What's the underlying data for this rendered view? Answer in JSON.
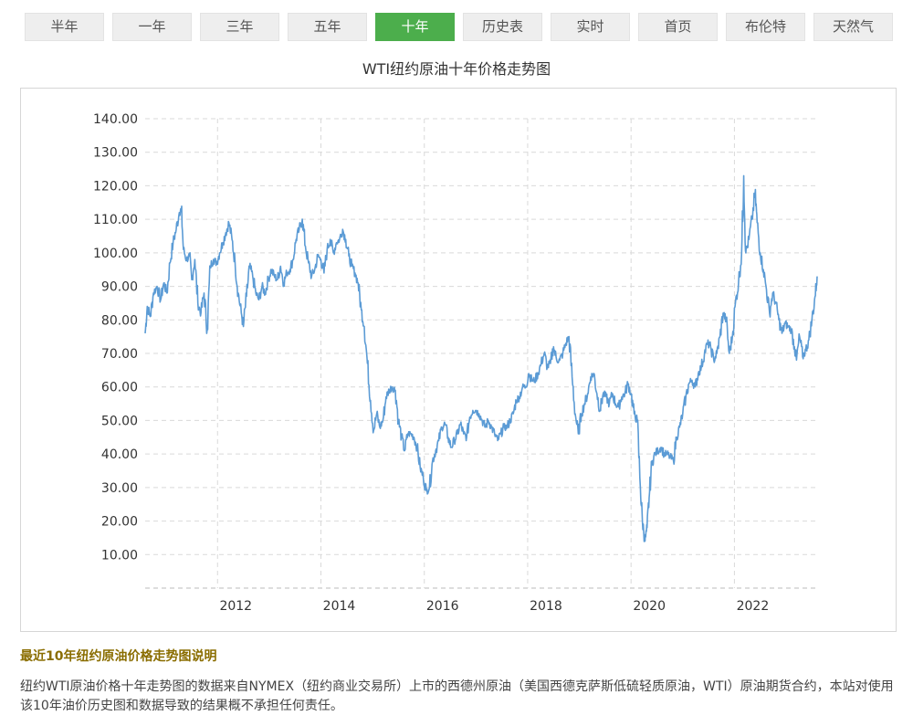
{
  "tabs": [
    {
      "label": "半年",
      "active": false
    },
    {
      "label": "一年",
      "active": false
    },
    {
      "label": "三年",
      "active": false
    },
    {
      "label": "五年",
      "active": false
    },
    {
      "label": "十年",
      "active": true
    },
    {
      "label": "历史表",
      "active": false
    },
    {
      "label": "实时",
      "active": false
    },
    {
      "label": "首页",
      "active": false
    },
    {
      "label": "布伦特",
      "active": false
    },
    {
      "label": "天然气",
      "active": false
    }
  ],
  "colors": {
    "line": "#5b9bd5",
    "active_tab": "#4cae4c",
    "grid": "#d9d9d9",
    "heading": "#8a6d00"
  },
  "chart_data": {
    "type": "line",
    "title": "WTI纽约原油十年价格走势图",
    "xlabel": "",
    "ylabel": "",
    "xlim": [
      2010.6,
      2023.6
    ],
    "ylim": [
      0,
      140
    ],
    "y_ticks": [
      "10.00",
      "20.00",
      "30.00",
      "40.00",
      "50.00",
      "60.00",
      "70.00",
      "80.00",
      "90.00",
      "100.00",
      "110.00",
      "120.00",
      "130.00",
      "140.00"
    ],
    "x_ticks": [
      "2012",
      "2014",
      "2016",
      "2018",
      "2020",
      "2022"
    ],
    "grid": true,
    "legend": "none",
    "series": [
      {
        "points": [
          [
            2010.6,
            76
          ],
          [
            2010.64,
            84
          ],
          [
            2010.7,
            81
          ],
          [
            2010.76,
            88
          ],
          [
            2010.83,
            90
          ],
          [
            2010.9,
            86
          ],
          [
            2010.96,
            91
          ],
          [
            2011.02,
            88
          ],
          [
            2011.08,
            97
          ],
          [
            2011.14,
            103
          ],
          [
            2011.2,
            107
          ],
          [
            2011.26,
            112
          ],
          [
            2011.3,
            113
          ],
          [
            2011.34,
            101
          ],
          [
            2011.4,
            98
          ],
          [
            2011.46,
            99
          ],
          [
            2011.5,
            92
          ],
          [
            2011.56,
            98
          ],
          [
            2011.62,
            85
          ],
          [
            2011.68,
            82
          ],
          [
            2011.74,
            88
          ],
          [
            2011.8,
            77
          ],
          [
            2011.86,
            96
          ],
          [
            2011.92,
            98
          ],
          [
            2011.98,
            97
          ],
          [
            2012.04,
            100
          ],
          [
            2012.1,
            103
          ],
          [
            2012.16,
            106
          ],
          [
            2012.22,
            109
          ],
          [
            2012.28,
            104
          ],
          [
            2012.34,
            97
          ],
          [
            2012.4,
            88
          ],
          [
            2012.46,
            82
          ],
          [
            2012.5,
            78
          ],
          [
            2012.56,
            87
          ],
          [
            2012.62,
            96
          ],
          [
            2012.68,
            93
          ],
          [
            2012.74,
            88
          ],
          [
            2012.8,
            86
          ],
          [
            2012.86,
            90
          ],
          [
            2012.92,
            88
          ],
          [
            2012.98,
            92
          ],
          [
            2013.04,
            95
          ],
          [
            2013.1,
            93
          ],
          [
            2013.16,
            92
          ],
          [
            2013.22,
            96
          ],
          [
            2013.28,
            91
          ],
          [
            2013.34,
            94
          ],
          [
            2013.4,
            95
          ],
          [
            2013.46,
            98
          ],
          [
            2013.52,
            104
          ],
          [
            2013.58,
            107
          ],
          [
            2013.64,
            110
          ],
          [
            2013.7,
            102
          ],
          [
            2013.76,
            97
          ],
          [
            2013.82,
            93
          ],
          [
            2013.88,
            95
          ],
          [
            2013.94,
            99
          ],
          [
            2014.0,
            98
          ],
          [
            2014.06,
            94
          ],
          [
            2014.12,
            101
          ],
          [
            2014.18,
            104
          ],
          [
            2014.24,
            100
          ],
          [
            2014.3,
            103
          ],
          [
            2014.36,
            104
          ],
          [
            2014.42,
            107
          ],
          [
            2014.48,
            104
          ],
          [
            2014.54,
            99
          ],
          [
            2014.6,
            96
          ],
          [
            2014.66,
            94
          ],
          [
            2014.72,
            91
          ],
          [
            2014.78,
            83
          ],
          [
            2014.84,
            78
          ],
          [
            2014.9,
            67
          ],
          [
            2014.96,
            56
          ],
          [
            2015.02,
            47
          ],
          [
            2015.08,
            52
          ],
          [
            2015.14,
            48
          ],
          [
            2015.2,
            50
          ],
          [
            2015.26,
            57
          ],
          [
            2015.32,
            59
          ],
          [
            2015.38,
            60
          ],
          [
            2015.44,
            59
          ],
          [
            2015.5,
            50
          ],
          [
            2015.56,
            45
          ],
          [
            2015.62,
            41
          ],
          [
            2015.68,
            46
          ],
          [
            2015.74,
            46
          ],
          [
            2015.8,
            45
          ],
          [
            2015.86,
            42
          ],
          [
            2015.92,
            36
          ],
          [
            2015.98,
            33
          ],
          [
            2016.04,
            29
          ],
          [
            2016.1,
            30
          ],
          [
            2016.16,
            38
          ],
          [
            2016.22,
            41
          ],
          [
            2016.28,
            44
          ],
          [
            2016.34,
            48
          ],
          [
            2016.4,
            49
          ],
          [
            2016.46,
            45
          ],
          [
            2016.52,
            42
          ],
          [
            2016.58,
            44
          ],
          [
            2016.64,
            46
          ],
          [
            2016.7,
            49
          ],
          [
            2016.76,
            46
          ],
          [
            2016.82,
            45
          ],
          [
            2016.88,
            51
          ],
          [
            2016.94,
            53
          ],
          [
            2017.0,
            53
          ],
          [
            2017.06,
            52
          ],
          [
            2017.12,
            50
          ],
          [
            2017.18,
            48
          ],
          [
            2017.24,
            50
          ],
          [
            2017.3,
            48
          ],
          [
            2017.36,
            46
          ],
          [
            2017.42,
            44
          ],
          [
            2017.48,
            46
          ],
          [
            2017.54,
            48
          ],
          [
            2017.6,
            48
          ],
          [
            2017.66,
            50
          ],
          [
            2017.72,
            52
          ],
          [
            2017.78,
            56
          ],
          [
            2017.84,
            57
          ],
          [
            2017.9,
            60
          ],
          [
            2017.96,
            60
          ],
          [
            2018.02,
            64
          ],
          [
            2018.08,
            62
          ],
          [
            2018.14,
            62
          ],
          [
            2018.2,
            64
          ],
          [
            2018.26,
            67
          ],
          [
            2018.32,
            70
          ],
          [
            2018.38,
            66
          ],
          [
            2018.44,
            67
          ],
          [
            2018.5,
            72
          ],
          [
            2018.56,
            68
          ],
          [
            2018.62,
            68
          ],
          [
            2018.68,
            70
          ],
          [
            2018.74,
            73
          ],
          [
            2018.8,
            75
          ],
          [
            2018.86,
            63
          ],
          [
            2018.92,
            52
          ],
          [
            2018.98,
            46
          ],
          [
            2019.04,
            52
          ],
          [
            2019.1,
            55
          ],
          [
            2019.16,
            58
          ],
          [
            2019.22,
            63
          ],
          [
            2019.28,
            64
          ],
          [
            2019.34,
            58
          ],
          [
            2019.4,
            53
          ],
          [
            2019.46,
            58
          ],
          [
            2019.52,
            57
          ],
          [
            2019.58,
            55
          ],
          [
            2019.64,
            58
          ],
          [
            2019.7,
            55
          ],
          [
            2019.76,
            54
          ],
          [
            2019.82,
            57
          ],
          [
            2019.88,
            58
          ],
          [
            2019.94,
            61
          ],
          [
            2020.0,
            58
          ],
          [
            2020.06,
            52
          ],
          [
            2020.12,
            50
          ],
          [
            2020.18,
            30
          ],
          [
            2020.22,
            20
          ],
          [
            2020.27,
            14
          ],
          [
            2020.31,
            18
          ],
          [
            2020.35,
            27
          ],
          [
            2020.4,
            37
          ],
          [
            2020.46,
            40
          ],
          [
            2020.52,
            41
          ],
          [
            2020.58,
            42
          ],
          [
            2020.64,
            40
          ],
          [
            2020.7,
            40
          ],
          [
            2020.76,
            39
          ],
          [
            2020.82,
            38
          ],
          [
            2020.88,
            45
          ],
          [
            2020.94,
            48
          ],
          [
            2021.0,
            52
          ],
          [
            2021.06,
            57
          ],
          [
            2021.12,
            61
          ],
          [
            2021.18,
            62
          ],
          [
            2021.24,
            60
          ],
          [
            2021.3,
            64
          ],
          [
            2021.36,
            66
          ],
          [
            2021.42,
            70
          ],
          [
            2021.48,
            73
          ],
          [
            2021.54,
            72
          ],
          [
            2021.6,
            68
          ],
          [
            2021.66,
            70
          ],
          [
            2021.72,
            75
          ],
          [
            2021.78,
            82
          ],
          [
            2021.84,
            80
          ],
          [
            2021.9,
            70
          ],
          [
            2021.96,
            75
          ],
          [
            2022.02,
            85
          ],
          [
            2022.08,
            91
          ],
          [
            2022.14,
            100
          ],
          [
            2022.18,
            123
          ],
          [
            2022.22,
            100
          ],
          [
            2022.28,
            104
          ],
          [
            2022.34,
            110
          ],
          [
            2022.4,
            118
          ],
          [
            2022.44,
            109
          ],
          [
            2022.5,
            100
          ],
          [
            2022.56,
            95
          ],
          [
            2022.62,
            89
          ],
          [
            2022.68,
            82
          ],
          [
            2022.74,
            88
          ],
          [
            2022.8,
            85
          ],
          [
            2022.86,
            80
          ],
          [
            2022.92,
            76
          ],
          [
            2022.98,
            79
          ],
          [
            2023.04,
            78
          ],
          [
            2023.1,
            77
          ],
          [
            2023.16,
            72
          ],
          [
            2023.2,
            68
          ],
          [
            2023.26,
            75
          ],
          [
            2023.32,
            69
          ],
          [
            2023.38,
            71
          ],
          [
            2023.44,
            74
          ],
          [
            2023.5,
            80
          ],
          [
            2023.56,
            87
          ],
          [
            2023.6,
            93
          ]
        ]
      }
    ]
  },
  "description": {
    "heading": "最近10年纽约原油价格走势图说明",
    "body": "纽约WTI原油价格十年走势图的数据来自NYMEX（纽约商业交易所）上市的西德州原油（美国西德克萨斯低硫轻质原油，WTI）原油期货合约，本站对使用该10年油价历史图和数据导致的结果概不承担任何责任。"
  }
}
